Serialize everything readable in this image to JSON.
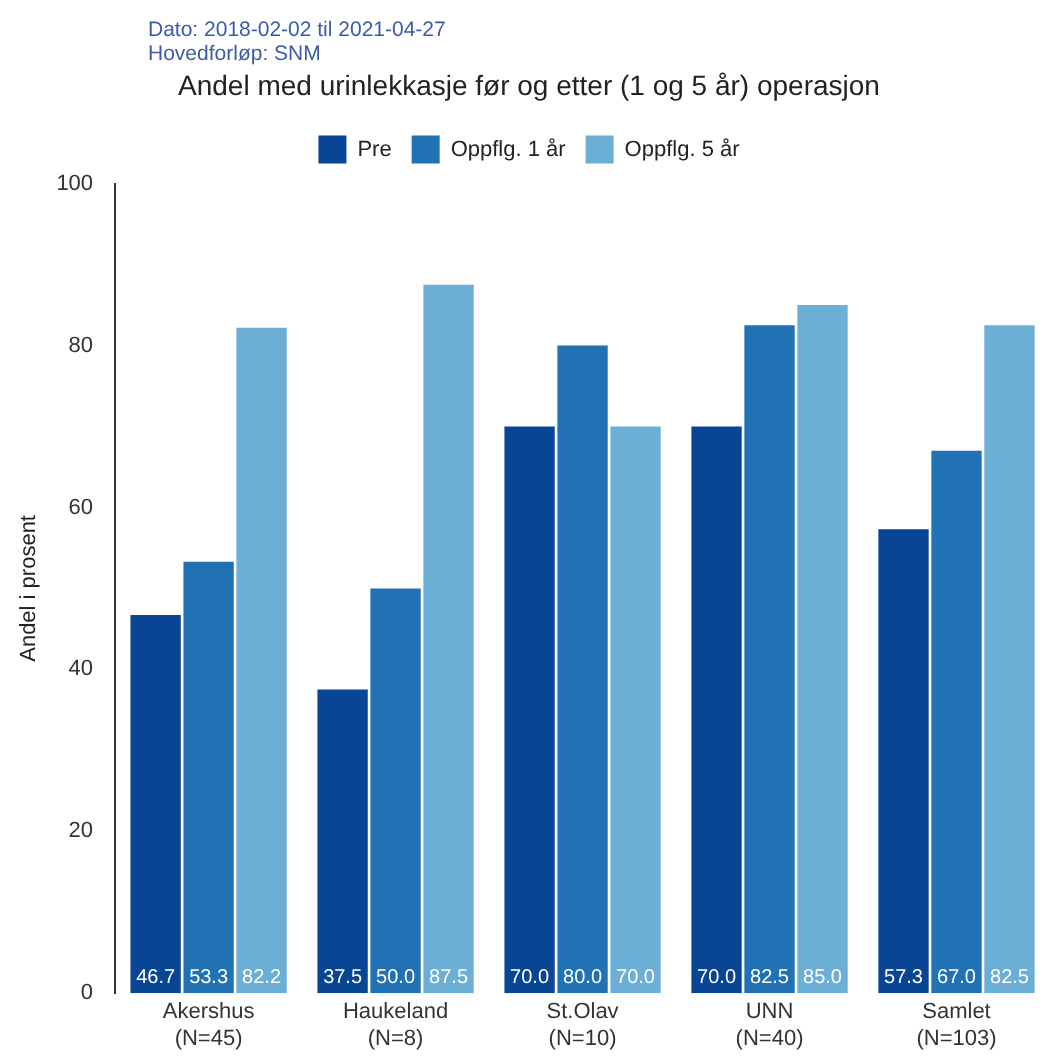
{
  "chart_data": {
    "type": "bar",
    "title": "Andel med urinlekkasje før og etter (1 og 5 år) operasjon",
    "annotations": [
      "Dato: 2018-02-02 til 2021-04-27",
      "Hovedforløp: SNM"
    ],
    "ylabel": "Andel i prosent",
    "categories": [
      "Akershus\n(N=45)",
      "Haukeland\n(N=8)",
      "St.Olav\n(N=10)",
      "UNN\n(N=40)",
      "Samlet\n(N=103)"
    ],
    "series": [
      {
        "name": "Pre",
        "color": "#084594",
        "values": [
          46.7,
          37.5,
          70.0,
          70.0,
          57.3
        ],
        "value_labels": [
          "46.7",
          "37.5",
          "70.0",
          "70.0",
          "57.3"
        ]
      },
      {
        "name": "Oppflg. 1 år",
        "color": "#2171b5",
        "values": [
          53.3,
          50.0,
          80.0,
          82.5,
          67.0
        ],
        "value_labels": [
          "53.3",
          "50.0",
          "80.0",
          "82.5",
          "67.0"
        ]
      },
      {
        "name": "Oppflg. 5 år",
        "color": "#6baed6",
        "values": [
          82.2,
          87.5,
          70.0,
          85.0,
          82.5
        ],
        "value_labels": [
          "82.2",
          "87.5",
          "70.0",
          "85.0",
          "82.5"
        ]
      }
    ],
    "ylim": [
      0,
      100
    ],
    "yticks": [
      0,
      20,
      40,
      60,
      80,
      100
    ],
    "grid": false,
    "legend": "top"
  }
}
